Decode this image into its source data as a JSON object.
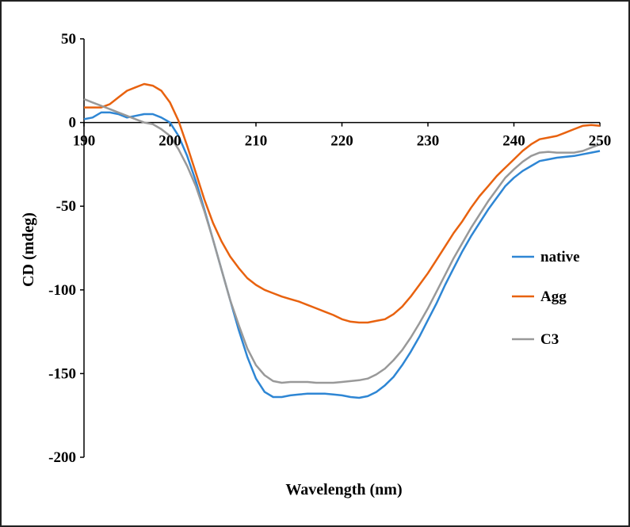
{
  "chart_data": {
    "type": "line",
    "title": "",
    "xlabel": "Wavelength (nm)",
    "ylabel": "CD (mdeg)",
    "xlim": [
      190,
      250
    ],
    "ylim": [
      -200,
      50
    ],
    "xticks": [
      190,
      200,
      210,
      220,
      230,
      240,
      250
    ],
    "yticks": [
      50,
      0,
      -50,
      -100,
      -150,
      -200
    ],
    "grid": false,
    "legend_position": "right",
    "x": [
      190,
      191,
      192,
      193,
      194,
      195,
      196,
      197,
      198,
      199,
      200,
      201,
      202,
      203,
      204,
      205,
      206,
      207,
      208,
      209,
      210,
      211,
      212,
      213,
      214,
      215,
      216,
      217,
      218,
      219,
      220,
      221,
      222,
      223,
      224,
      225,
      226,
      227,
      228,
      229,
      230,
      231,
      232,
      233,
      234,
      235,
      236,
      237,
      238,
      239,
      240,
      241,
      242,
      243,
      244,
      245,
      246,
      247,
      248,
      249,
      250
    ],
    "series": [
      {
        "name": "native",
        "color": "#2E86D4",
        "values": [
          2,
          3,
          6,
          6,
          5,
          3,
          4,
          5,
          5,
          3,
          0,
          -8,
          -20,
          -35,
          -52,
          -70,
          -88,
          -106,
          -124,
          -140,
          -153,
          -161,
          -164,
          -164,
          -163,
          -162.5,
          -162,
          -162,
          -162,
          -162.5,
          -163,
          -164,
          -164.5,
          -163.5,
          -161,
          -157,
          -152,
          -145,
          -137,
          -128,
          -118,
          -108,
          -97,
          -87,
          -77,
          -68,
          -60,
          -52,
          -45,
          -38,
          -33,
          -29,
          -26,
          -23,
          -22,
          -21,
          -20.5,
          -20,
          -19,
          -18,
          -17
        ]
      },
      {
        "name": "Agg",
        "color": "#E8620F",
        "values": [
          9,
          9,
          9,
          11,
          15,
          19,
          21,
          23,
          22,
          19,
          12,
          1,
          -14,
          -30,
          -46,
          -60,
          -71,
          -80,
          -87,
          -93,
          -97,
          -100,
          -102,
          -104,
          -105.5,
          -107,
          -109,
          -111,
          -113,
          -115,
          -117.5,
          -119,
          -119.5,
          -119.5,
          -118.5,
          -117.5,
          -114.5,
          -110,
          -104,
          -97,
          -90,
          -82,
          -74,
          -66,
          -59,
          -51,
          -44,
          -38,
          -32,
          -27,
          -22,
          -17,
          -13,
          -10,
          -9,
          -8,
          -6,
          -4,
          -2,
          -1.5,
          -2
        ]
      },
      {
        "name": "C3",
        "color": "#999999",
        "values": [
          14,
          12,
          10,
          8,
          6,
          4,
          2,
          0,
          -1,
          -4,
          -8,
          -16,
          -26,
          -38,
          -53,
          -70,
          -88,
          -106,
          -121,
          -135,
          -145,
          -151,
          -154.5,
          -155.5,
          -155,
          -155,
          -155,
          -155.5,
          -155.5,
          -155.5,
          -155,
          -154.5,
          -154,
          -153,
          -150.5,
          -147,
          -142,
          -136,
          -128.5,
          -120,
          -111,
          -101,
          -91,
          -81,
          -72,
          -63,
          -55,
          -47,
          -40,
          -33,
          -28,
          -23.5,
          -20,
          -18,
          -17.5,
          -18,
          -18,
          -18,
          -17,
          -15,
          -13
        ]
      }
    ]
  }
}
